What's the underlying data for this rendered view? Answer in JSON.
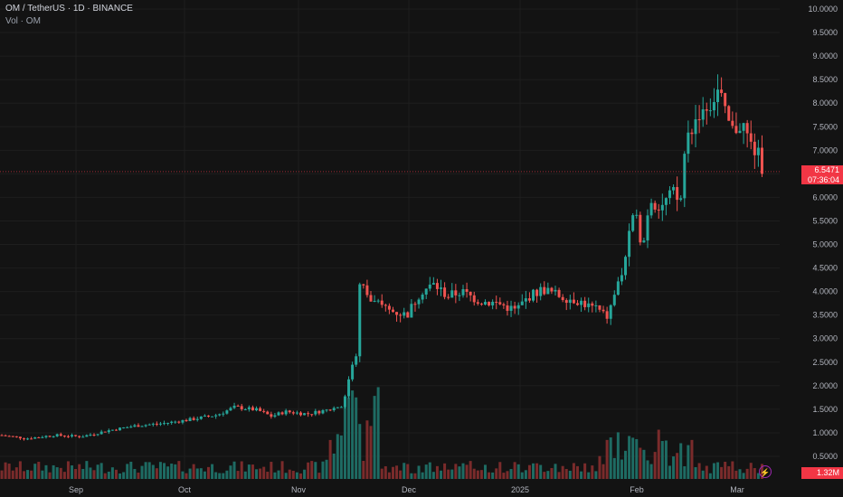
{
  "header": {
    "title": "OM / TetherUS · 1D · BINANCE",
    "volume_label": "Vol · OM"
  },
  "price_tag": {
    "price": "6.5471",
    "countdown": "07:36:04"
  },
  "volume_tag": "1.32M",
  "colors": {
    "up": "#26a69a",
    "down": "#ef5350",
    "up_vol": "#1e6b63",
    "down_vol": "#7a2b2b",
    "tag": "#f23645",
    "grid": "#1e1e1e"
  },
  "chart_data": {
    "type": "candlestick",
    "symbol": "OM / TetherUS",
    "interval": "1D",
    "exchange": "BINANCE",
    "y_axis_ticks": [
      "10.0000",
      "9.5000",
      "9.0000",
      "8.5000",
      "8.0000",
      "7.5000",
      "7.0000",
      "6.5000",
      "6.0000",
      "5.5000",
      "5.0000",
      "4.5000",
      "4.0000",
      "3.5000",
      "3.0000",
      "2.5000",
      "2.0000",
      "1.5000",
      "1.0000",
      "0.5000"
    ],
    "ylim": [
      0.3,
      10.2
    ],
    "x_axis_ticks": [
      "Sep",
      "Oct",
      "Nov",
      "Dec",
      "2025",
      "Feb",
      "Mar"
    ],
    "last_price": 6.5471,
    "series_daily_closes": [
      {
        "period": "Aug (late)",
        "approx_range": [
          0.85,
          1.0
        ]
      },
      {
        "period": "Sep",
        "approx_range": [
          0.9,
          1.1
        ]
      },
      {
        "period": "Oct",
        "approx_range": [
          1.1,
          1.6
        ]
      },
      {
        "period": "early Nov",
        "approx_range": [
          1.3,
          1.5
        ]
      },
      {
        "period": "mid Nov",
        "approx_range": [
          1.5,
          2.8
        ]
      },
      {
        "period": "late Nov",
        "approx_range": [
          3.6,
          4.3
        ]
      },
      {
        "period": "Dec",
        "approx_range": [
          3.4,
          4.2
        ]
      },
      {
        "period": "Jan",
        "approx_range": [
          3.4,
          4.1
        ]
      },
      {
        "period": "late Jan",
        "approx_range": [
          3.5,
          5.0
        ]
      },
      {
        "period": "early Feb",
        "approx_range": [
          4.4,
          6.0
        ]
      },
      {
        "period": "mid Feb",
        "approx_range": [
          5.6,
          7.9
        ]
      },
      {
        "period": "late Feb",
        "approx_range": [
          7.2,
          8.5
        ]
      },
      {
        "period": "Mar",
        "approx_range": [
          6.5,
          7.7
        ]
      }
    ],
    "grid": true
  }
}
